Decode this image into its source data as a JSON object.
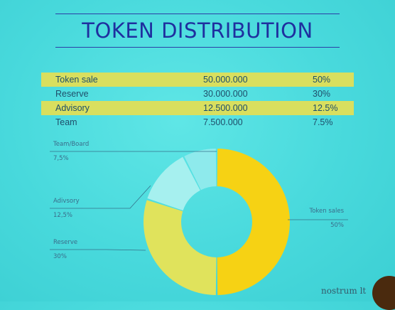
{
  "title": "TOKEN DISTRIBUTION",
  "table": [
    {
      "name": "Token sale",
      "amount": "50.000.000",
      "pct": "50%",
      "highlight": true
    },
    {
      "name": "Reserve",
      "amount": "30.000.000",
      "pct": "30%",
      "highlight": false
    },
    {
      "name": "Advisory",
      "amount": "12.500.000",
      "pct": "12.5%",
      "highlight": true
    },
    {
      "name": "Team",
      "amount": "7.500.000",
      "pct": "7.5%",
      "highlight": false
    }
  ],
  "chart_data": {
    "type": "pie",
    "donut": true,
    "slices": [
      {
        "label": "Token sales",
        "value": 50,
        "value_label": "50%",
        "color": "#f6d214"
      },
      {
        "label": "Reserve",
        "value": 30,
        "value_label": "30%",
        "color": "#e0e35c"
      },
      {
        "label": "Adivsory",
        "value": 12.5,
        "value_label": "12,5%",
        "color": "#a6f0ef"
      },
      {
        "label": "Team/Board",
        "value": 7.5,
        "value_label": "7,5%",
        "color": "#8eeaec"
      }
    ]
  },
  "watermark": "nostrum lt",
  "colors": {
    "title": "#1f2f9f",
    "highlight_row": "#d9df5e",
    "background": "#4fdcdf"
  }
}
